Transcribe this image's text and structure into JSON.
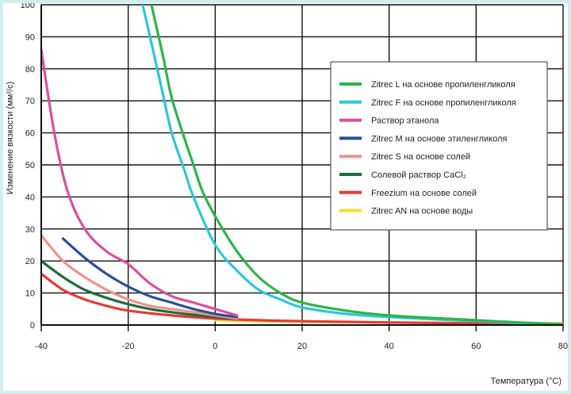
{
  "chart_data": {
    "type": "line",
    "title": "",
    "xlabel": "Температура (°C)",
    "ylabel": "Изменение вязкости (мм²/с)",
    "xlim": [
      -40,
      80
    ],
    "ylim": [
      0,
      100
    ],
    "x_ticks": [
      "-40",
      "-20",
      "0",
      "20",
      "40",
      "60",
      "80"
    ],
    "y_ticks": [
      "0",
      "10",
      "20",
      "30",
      "40",
      "50",
      "60",
      "70",
      "80",
      "90",
      "100"
    ],
    "grid": true,
    "legend_position": "top-right",
    "series": [
      {
        "name": "Zitrec L на основе пропиленгликоля",
        "color": "#2fb34a",
        "x": [
          -15,
          -12,
          -10,
          -7,
          -5,
          -3,
          0,
          5,
          10,
          15,
          20,
          30,
          40,
          50,
          60,
          70,
          80
        ],
        "y": [
          102,
          84,
          71,
          58,
          50,
          42,
          34,
          23,
          15,
          10,
          7,
          4.5,
          3,
          2.2,
          1.5,
          0.8,
          0.3
        ]
      },
      {
        "name": "Zitrec F на основе пропиленгликоля",
        "color": "#2ec6d6",
        "x": [
          -17,
          -14,
          -12,
          -10,
          -7,
          -5,
          0,
          5,
          10,
          15,
          20,
          30,
          40,
          50,
          60,
          70,
          80
        ],
        "y": [
          102,
          84,
          72,
          60,
          48,
          40,
          25,
          17,
          11,
          8,
          5.5,
          3.5,
          2.5,
          1.8,
          1.2,
          0.6,
          0.2
        ]
      },
      {
        "name": "Раствор этанола",
        "color": "#d9509c",
        "x": [
          -40,
          -37,
          -34,
          -30,
          -25,
          -20,
          -15,
          -10,
          -5,
          0,
          5
        ],
        "y": [
          86,
          60,
          42,
          30,
          23,
          19,
          13,
          9,
          7,
          5,
          3
        ]
      },
      {
        "name": "Zitrec M на основе этиленгликоля",
        "color": "#2a4f96",
        "x": [
          -35,
          -30,
          -25,
          -20,
          -15,
          -10,
          -5,
          0,
          5
        ],
        "y": [
          27,
          21,
          16,
          12,
          9,
          7,
          5,
          3.5,
          2.5
        ]
      },
      {
        "name": "Zitrec S на основе солей",
        "color": "#f0928c",
        "x": [
          -40,
          -35,
          -30,
          -25,
          -20,
          -15,
          -10,
          -5,
          0,
          5
        ],
        "y": [
          28,
          20,
          15,
          11,
          8,
          6,
          5,
          4,
          3,
          2
        ]
      },
      {
        "name": "Солевой раствор CaCl₂",
        "color": "#1f6b3c",
        "x": [
          -40,
          -35,
          -30,
          -25,
          -20,
          -15,
          -10,
          -5,
          0,
          5
        ],
        "y": [
          20,
          15,
          11,
          8.5,
          6.5,
          5,
          4,
          3.2,
          2.5,
          2
        ]
      },
      {
        "name": "Freezium на основе солей",
        "color": "#e53a35",
        "x": [
          -40,
          -35,
          -30,
          -25,
          -20,
          -10,
          0,
          10,
          20,
          40,
          60,
          80
        ],
        "y": [
          16,
          11,
          8,
          6,
          4.5,
          3,
          2,
          1.5,
          1.2,
          0.8,
          0.5,
          0.3
        ]
      },
      {
        "name": "Zitrec AN на основе воды",
        "color": "#f4e02c",
        "x": [
          0,
          10,
          20,
          40,
          60,
          80
        ],
        "y": [
          1.5,
          1.2,
          1.0,
          0.8,
          0.6,
          0.5
        ]
      }
    ]
  }
}
